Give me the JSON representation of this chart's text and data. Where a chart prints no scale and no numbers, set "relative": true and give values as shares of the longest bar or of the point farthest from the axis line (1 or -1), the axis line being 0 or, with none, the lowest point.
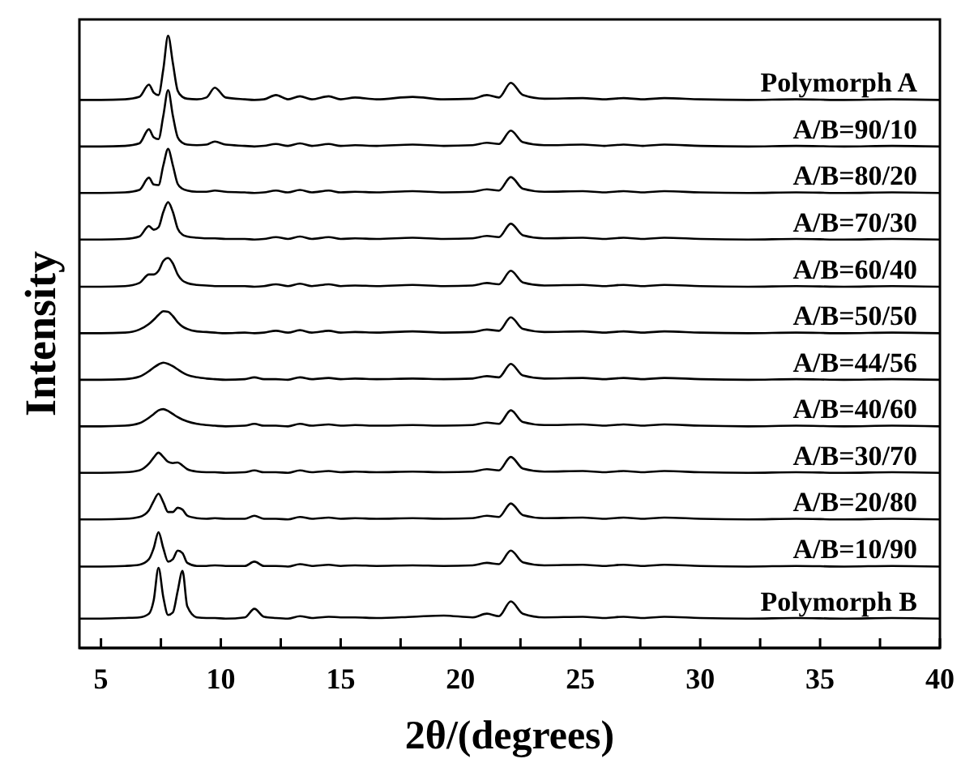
{
  "chart_data": {
    "type": "line",
    "relative": true,
    "xlabel": "2θ/(degrees)",
    "ylabel": "Intensity",
    "xlim": [
      4.1,
      40
    ],
    "xticks": [
      5,
      {
        "value": 7.5,
        "label": null
      },
      10,
      {
        "value": 12.5,
        "label": null
      },
      15,
      {
        "value": 17.5,
        "label": null
      },
      20,
      {
        "value": 22.5,
        "label": null
      },
      25,
      {
        "value": 27.5,
        "label": null
      },
      30,
      {
        "value": 32.5,
        "label": null
      },
      35,
      {
        "value": 37.5,
        "label": null
      },
      40
    ],
    "x": [
      4.1,
      5,
      6,
      6.6,
      7.0,
      7.2,
      7.4,
      7.6,
      7.8,
      8.0,
      8.2,
      8.4,
      8.6,
      9.0,
      9.4,
      9.75,
      10.2,
      11,
      11.4,
      11.8,
      12.3,
      12.8,
      13.3,
      13.8,
      14.5,
      15.0,
      15.6,
      16.5,
      18.0,
      19.3,
      20.5,
      21.1,
      21.6,
      22.1,
      22.6,
      23.5,
      25.1,
      26.0,
      26.8,
      27.6,
      28.5,
      30,
      32,
      34,
      36,
      38,
      40
    ],
    "series": [
      {
        "name": "Polymorph A",
        "color": "#000000",
        "values": [
          0.895,
          0.895,
          0.896,
          0.9,
          0.92,
          0.907,
          0.903,
          0.945,
          1.0,
          0.955,
          0.91,
          0.9,
          0.897,
          0.896,
          0.899,
          0.915,
          0.899,
          0.896,
          0.895,
          0.896,
          0.903,
          0.896,
          0.901,
          0.896,
          0.901,
          0.896,
          0.899,
          0.896,
          0.9,
          0.896,
          0.897,
          0.903,
          0.899,
          0.923,
          0.903,
          0.897,
          0.898,
          0.896,
          0.898,
          0.896,
          0.898,
          0.896,
          0.895,
          0.896,
          0.895,
          0.896,
          0.895
        ]
      },
      {
        "name": "A/B=90/10",
        "color": "#000000",
        "values": [
          0.819,
          0.819,
          0.82,
          0.824,
          0.847,
          0.834,
          0.831,
          0.869,
          0.911,
          0.869,
          0.834,
          0.825,
          0.822,
          0.821,
          0.822,
          0.827,
          0.822,
          0.82,
          0.819,
          0.82,
          0.823,
          0.82,
          0.824,
          0.82,
          0.823,
          0.82,
          0.821,
          0.82,
          0.822,
          0.82,
          0.821,
          0.825,
          0.823,
          0.845,
          0.826,
          0.821,
          0.822,
          0.82,
          0.822,
          0.82,
          0.822,
          0.82,
          0.819,
          0.82,
          0.819,
          0.82,
          0.819
        ]
      },
      {
        "name": "A/B=80/20",
        "color": "#000000",
        "values": [
          0.743,
          0.743,
          0.744,
          0.748,
          0.768,
          0.757,
          0.756,
          0.788,
          0.815,
          0.788,
          0.758,
          0.75,
          0.747,
          0.745,
          0.745,
          0.747,
          0.745,
          0.744,
          0.743,
          0.744,
          0.747,
          0.744,
          0.748,
          0.744,
          0.747,
          0.744,
          0.745,
          0.744,
          0.746,
          0.744,
          0.745,
          0.749,
          0.747,
          0.769,
          0.75,
          0.745,
          0.746,
          0.744,
          0.746,
          0.744,
          0.746,
          0.744,
          0.743,
          0.744,
          0.743,
          0.744,
          0.743
        ]
      },
      {
        "name": "A/B=70/30",
        "color": "#000000",
        "values": [
          0.667,
          0.667,
          0.668,
          0.672,
          0.689,
          0.683,
          0.687,
          0.712,
          0.728,
          0.712,
          0.685,
          0.675,
          0.672,
          0.67,
          0.669,
          0.669,
          0.668,
          0.668,
          0.667,
          0.668,
          0.671,
          0.668,
          0.672,
          0.668,
          0.671,
          0.668,
          0.669,
          0.668,
          0.67,
          0.668,
          0.669,
          0.673,
          0.671,
          0.693,
          0.674,
          0.669,
          0.67,
          0.668,
          0.67,
          0.668,
          0.67,
          0.668,
          0.667,
          0.668,
          0.667,
          0.668,
          0.667
        ]
      },
      {
        "name": "A/B=60/40",
        "color": "#000000",
        "values": [
          0.59,
          0.59,
          0.591,
          0.596,
          0.61,
          0.61,
          0.616,
          0.632,
          0.637,
          0.628,
          0.61,
          0.6,
          0.596,
          0.593,
          0.592,
          0.591,
          0.591,
          0.591,
          0.59,
          0.591,
          0.594,
          0.591,
          0.595,
          0.591,
          0.594,
          0.591,
          0.592,
          0.591,
          0.593,
          0.591,
          0.592,
          0.596,
          0.594,
          0.616,
          0.597,
          0.592,
          0.593,
          0.591,
          0.593,
          0.591,
          0.593,
          0.591,
          0.59,
          0.591,
          0.59,
          0.591,
          0.59
        ]
      },
      {
        "name": "A/B=50/50",
        "color": "#000000",
        "values": [
          0.514,
          0.514,
          0.515,
          0.52,
          0.529,
          0.536,
          0.544,
          0.55,
          0.549,
          0.542,
          0.532,
          0.525,
          0.521,
          0.517,
          0.516,
          0.515,
          0.514,
          0.515,
          0.514,
          0.515,
          0.518,
          0.515,
          0.519,
          0.515,
          0.518,
          0.515,
          0.516,
          0.515,
          0.517,
          0.515,
          0.516,
          0.52,
          0.518,
          0.54,
          0.521,
          0.516,
          0.517,
          0.515,
          0.517,
          0.515,
          0.517,
          0.515,
          0.514,
          0.515,
          0.514,
          0.515,
          0.514
        ]
      },
      {
        "name": "A/B=44/56",
        "color": "#000000",
        "values": [
          0.438,
          0.438,
          0.439,
          0.443,
          0.452,
          0.458,
          0.463,
          0.466,
          0.464,
          0.46,
          0.455,
          0.45,
          0.446,
          0.442,
          0.44,
          0.439,
          0.438,
          0.439,
          0.442,
          0.439,
          0.439,
          0.438,
          0.442,
          0.439,
          0.441,
          0.439,
          0.44,
          0.439,
          0.44,
          0.439,
          0.44,
          0.444,
          0.442,
          0.464,
          0.445,
          0.44,
          0.441,
          0.439,
          0.441,
          0.439,
          0.441,
          0.439,
          0.438,
          0.439,
          0.438,
          0.439,
          0.438
        ]
      },
      {
        "name": "A/B=40/60",
        "color": "#000000",
        "values": [
          0.362,
          0.362,
          0.363,
          0.367,
          0.376,
          0.382,
          0.388,
          0.39,
          0.387,
          0.382,
          0.377,
          0.373,
          0.37,
          0.366,
          0.364,
          0.363,
          0.362,
          0.363,
          0.366,
          0.363,
          0.363,
          0.362,
          0.366,
          0.363,
          0.365,
          0.363,
          0.364,
          0.363,
          0.364,
          0.363,
          0.364,
          0.368,
          0.366,
          0.388,
          0.369,
          0.364,
          0.365,
          0.363,
          0.365,
          0.363,
          0.365,
          0.363,
          0.362,
          0.363,
          0.362,
          0.363,
          0.362
        ]
      },
      {
        "name": "A/B=30/70",
        "color": "#000000",
        "values": [
          0.286,
          0.286,
          0.287,
          0.29,
          0.301,
          0.311,
          0.319,
          0.312,
          0.304,
          0.302,
          0.303,
          0.298,
          0.292,
          0.288,
          0.287,
          0.287,
          0.286,
          0.287,
          0.29,
          0.287,
          0.287,
          0.286,
          0.29,
          0.287,
          0.289,
          0.287,
          0.288,
          0.287,
          0.288,
          0.287,
          0.288,
          0.292,
          0.29,
          0.312,
          0.293,
          0.288,
          0.289,
          0.287,
          0.289,
          0.287,
          0.289,
          0.287,
          0.286,
          0.287,
          0.286,
          0.287,
          0.286
        ]
      },
      {
        "name": "A/B=20/80",
        "color": "#000000",
        "values": [
          0.21,
          0.21,
          0.211,
          0.214,
          0.225,
          0.24,
          0.252,
          0.238,
          0.222,
          0.222,
          0.229,
          0.226,
          0.216,
          0.212,
          0.211,
          0.212,
          0.211,
          0.211,
          0.216,
          0.211,
          0.211,
          0.21,
          0.214,
          0.211,
          0.213,
          0.211,
          0.212,
          0.211,
          0.212,
          0.211,
          0.212,
          0.216,
          0.214,
          0.236,
          0.217,
          0.212,
          0.213,
          0.211,
          0.213,
          0.211,
          0.213,
          0.211,
          0.21,
          0.211,
          0.21,
          0.211,
          0.21
        ]
      },
      {
        "name": "A/B=10/90",
        "color": "#000000",
        "values": [
          0.133,
          0.133,
          0.134,
          0.136,
          0.145,
          0.163,
          0.189,
          0.163,
          0.141,
          0.145,
          0.159,
          0.155,
          0.139,
          0.134,
          0.134,
          0.135,
          0.134,
          0.134,
          0.141,
          0.134,
          0.134,
          0.133,
          0.137,
          0.134,
          0.136,
          0.134,
          0.135,
          0.134,
          0.135,
          0.134,
          0.135,
          0.139,
          0.137,
          0.159,
          0.14,
          0.135,
          0.136,
          0.134,
          0.136,
          0.134,
          0.136,
          0.134,
          0.133,
          0.134,
          0.133,
          0.134,
          0.133
        ]
      },
      {
        "name": "Polymorph B",
        "color": "#000000",
        "values": [
          0.048,
          0.048,
          0.049,
          0.05,
          0.056,
          0.078,
          0.131,
          0.083,
          0.054,
          0.058,
          0.093,
          0.126,
          0.068,
          0.05,
          0.049,
          0.049,
          0.048,
          0.05,
          0.064,
          0.051,
          0.049,
          0.048,
          0.052,
          0.049,
          0.051,
          0.05,
          0.05,
          0.049,
          0.051,
          0.053,
          0.05,
          0.056,
          0.052,
          0.076,
          0.056,
          0.05,
          0.051,
          0.049,
          0.051,
          0.049,
          0.051,
          0.049,
          0.048,
          0.049,
          0.048,
          0.049,
          0.048
        ]
      }
    ]
  }
}
